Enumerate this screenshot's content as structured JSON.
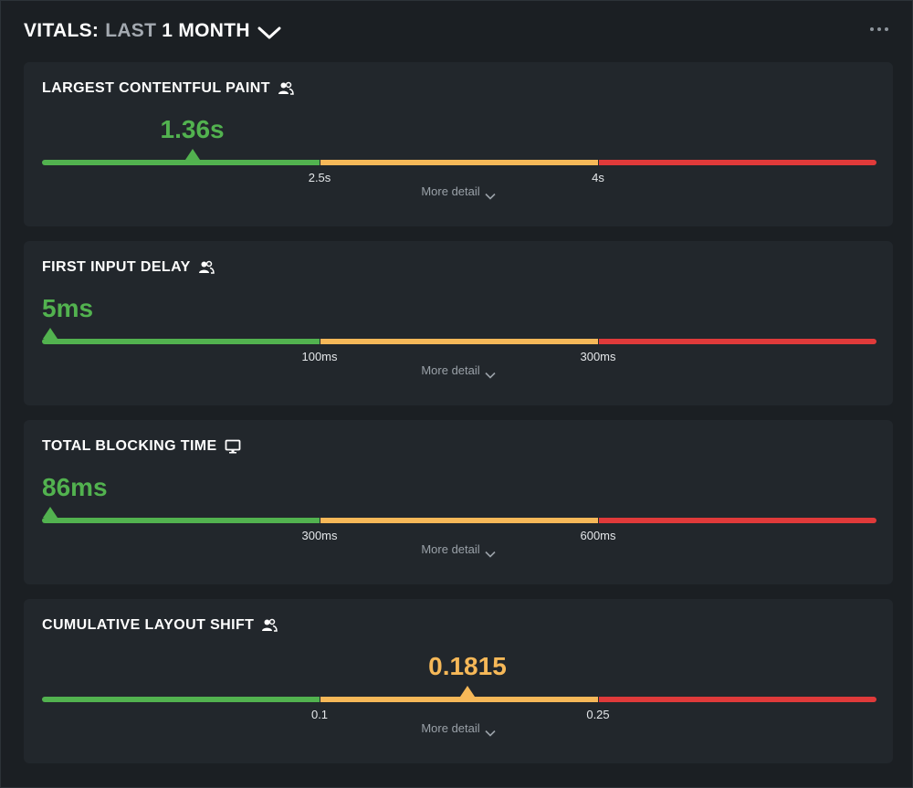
{
  "header": {
    "title_prefix": "VITALS:",
    "title_range": "LAST",
    "title_period": "1 MONTH"
  },
  "colors": {
    "good": "#52b24f",
    "needs_improvement": "#f6b858",
    "poor": "#e03a3a"
  },
  "metrics": [
    {
      "title": "LARGEST CONTENTFUL PAINT",
      "icon": "users-icon",
      "value": "1.36s",
      "status": "good",
      "position": 0.18,
      "thresholds": [
        "2.5s",
        "4s"
      ],
      "more": "More detail"
    },
    {
      "title": "FIRST INPUT DELAY",
      "icon": "users-icon",
      "value": "5ms",
      "status": "good",
      "position": 0.01,
      "thresholds": [
        "100ms",
        "300ms"
      ],
      "more": "More detail"
    },
    {
      "title": "TOTAL BLOCKING TIME",
      "icon": "monitor-icon",
      "value": "86ms",
      "status": "good",
      "position": 0.01,
      "thresholds": [
        "300ms",
        "600ms"
      ],
      "more": "More detail"
    },
    {
      "title": "CUMULATIVE LAYOUT SHIFT",
      "icon": "users-icon",
      "value": "0.1815",
      "status": "needs_improvement",
      "position": 0.51,
      "thresholds": [
        "0.1",
        "0.25"
      ],
      "more": "More detail"
    }
  ]
}
